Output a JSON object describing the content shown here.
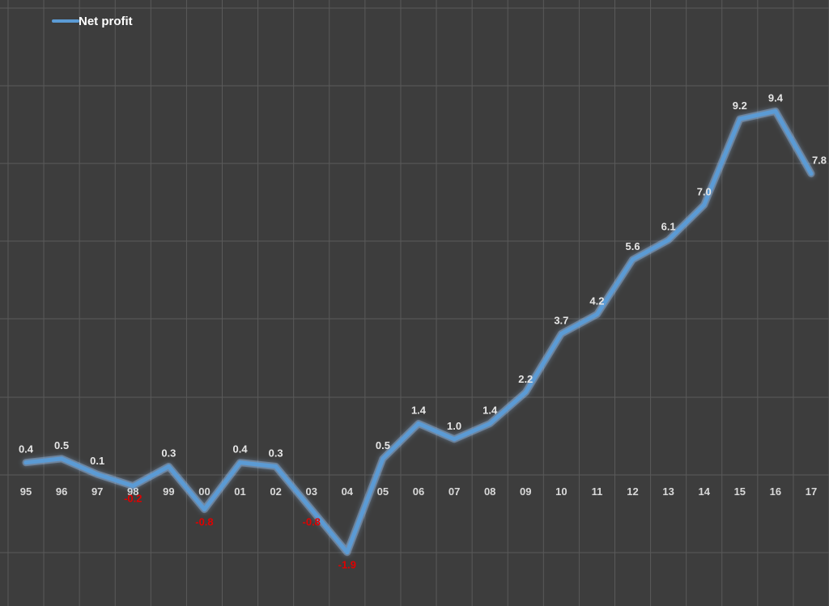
{
  "chart_data": {
    "type": "line",
    "categories": [
      "95",
      "96",
      "97",
      "98",
      "99",
      "00",
      "01",
      "02",
      "03",
      "04",
      "05",
      "06",
      "07",
      "08",
      "09",
      "10",
      "11",
      "12",
      "13",
      "14",
      "15",
      "16",
      "17"
    ],
    "series": [
      {
        "name": "Net profit",
        "values": [
          0.4,
          0.5,
          0.1,
          -0.2,
          0.3,
          -0.8,
          0.4,
          0.3,
          -0.8,
          -1.9,
          0.5,
          1.4,
          1.0,
          1.4,
          2.2,
          3.7,
          4.2,
          5.6,
          6.1,
          7.0,
          9.2,
          9.4,
          7.8
        ],
        "labels": [
          "0.4",
          "0.5",
          "0.1",
          "-0.2",
          "0.3",
          "-0.8",
          "0.4",
          "0.3",
          "-0.8",
          "-1.9",
          "0.5",
          "1.4",
          "1.0",
          "1.4",
          "2.2",
          "3.7",
          "4.2",
          "5.6",
          "6.1",
          "7.0",
          "9.2",
          "9.4",
          "7.8"
        ]
      }
    ],
    "ylim": [
      -3.5,
      11.5
    ],
    "grid": true,
    "legend_position": "top-left",
    "colors": {
      "background": "#3d3d3d",
      "grid": "#5a5a5a",
      "line": "#5b9bd5",
      "glow": "#9ecbff",
      "tick_text": "#d9d9d9",
      "label_positive": "#e6e6e6",
      "label_negative": "#e00000",
      "legend_text": "#ffffff"
    }
  }
}
